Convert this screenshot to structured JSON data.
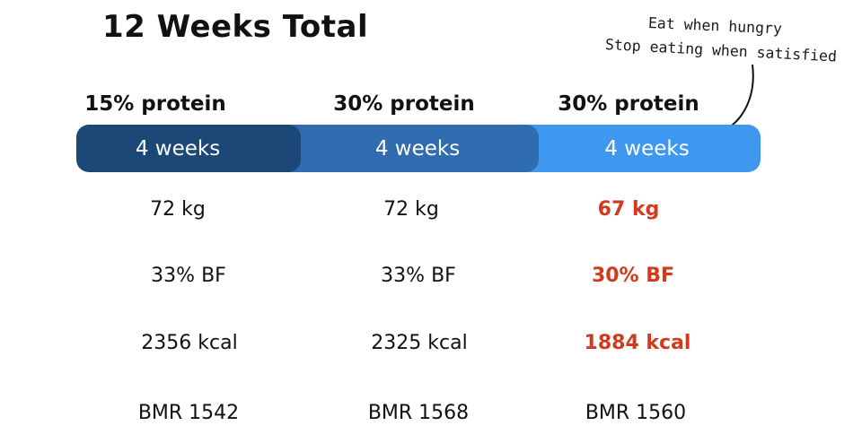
{
  "title": "12 Weeks Total",
  "annotation": {
    "line1": "Eat when hungry",
    "line2": "Stop eating when satisfied"
  },
  "highlight_color": "#d23a1e",
  "phases": [
    {
      "protein": "15% protein",
      "duration": "4 weeks",
      "bar_color": "#1b4877",
      "weight": "72 kg",
      "body_fat": "33% BF",
      "kcal": "2356 kcal",
      "bmr": "BMR 1542"
    },
    {
      "protein": "30% protein",
      "duration": "4 weeks",
      "bar_color": "#2f6db0",
      "weight": "72 kg",
      "body_fat": "33% BF",
      "kcal": "2325 kcal",
      "bmr": "BMR 1568"
    },
    {
      "protein": "30% protein",
      "duration": "4 weeks",
      "bar_color": "#3e98ef",
      "weight": "67 kg",
      "body_fat": "30% BF",
      "kcal": "1884 kcal",
      "bmr": "BMR 1560"
    }
  ]
}
